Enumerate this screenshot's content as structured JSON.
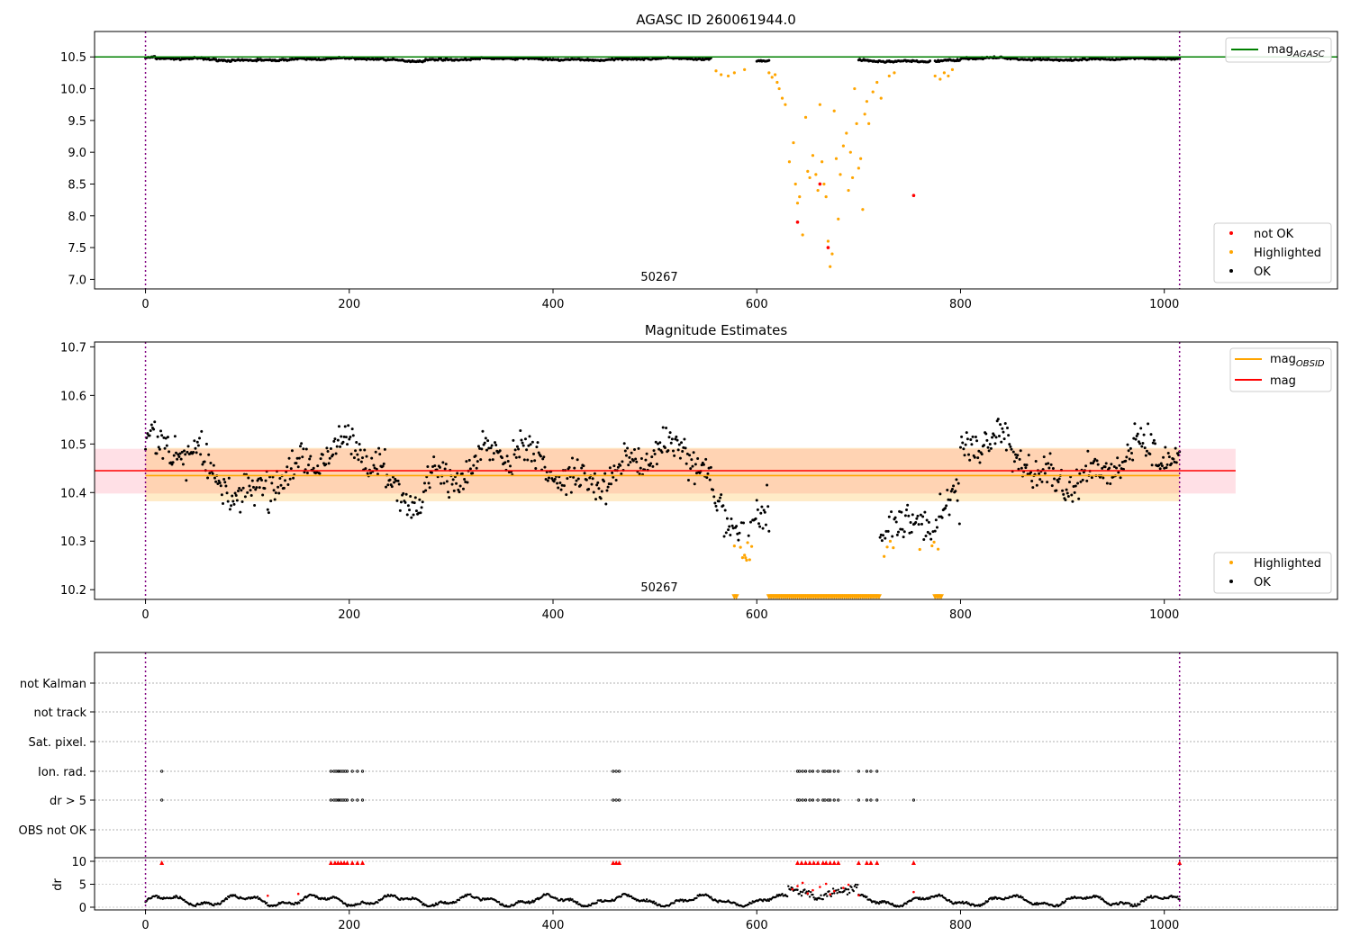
{
  "chart_data": [
    {
      "type": "scatter",
      "title": "AGASC ID 260061944.0",
      "annotation": "50267",
      "xlim": [
        -50,
        1170
      ],
      "ylim": [
        6.85,
        10.9
      ],
      "x_ticks": [
        "0",
        "200",
        "400",
        "600",
        "800",
        "1000"
      ],
      "y_ticks": [
        "7.0",
        "7.5",
        "8.0",
        "8.5",
        "9.0",
        "9.5",
        "10.0",
        "10.5"
      ],
      "vlines": [
        0,
        1015
      ],
      "reference_line": {
        "name": "mag",
        "subscript": "AGASC",
        "y": 10.5,
        "color": "#008000"
      },
      "legend_lines": [
        {
          "name": "mag",
          "subscript": "AGASC",
          "color": "#008000"
        }
      ],
      "legend_points": [
        {
          "name": "not OK",
          "color": "#ff0000"
        },
        {
          "name": "Highlighted",
          "color": "#ffa500"
        },
        {
          "name": "OK",
          "color": "#000000"
        }
      ],
      "series": [
        {
          "name": "OK",
          "color": "#000000",
          "ok_ranges": [
            [
              0,
              555
            ],
            [
              600,
              612
            ],
            [
              700,
              770
            ],
            [
              775,
              1015
            ]
          ]
        },
        {
          "name": "Highlighted",
          "color": "#ffa500",
          "points": [
            [
              560,
              10.28
            ],
            [
              565,
              10.22
            ],
            [
              572,
              10.2
            ],
            [
              578,
              10.25
            ],
            [
              588,
              10.3
            ],
            [
              612,
              10.25
            ],
            [
              615,
              10.18
            ],
            [
              618,
              10.22
            ],
            [
              620,
              10.1
            ],
            [
              622,
              10.0
            ],
            [
              625,
              9.85
            ],
            [
              628,
              9.75
            ],
            [
              632,
              8.85
            ],
            [
              636,
              9.15
            ],
            [
              638,
              8.5
            ],
            [
              640,
              8.2
            ],
            [
              642,
              8.3
            ],
            [
              645,
              7.7
            ],
            [
              648,
              9.55
            ],
            [
              650,
              8.7
            ],
            [
              652,
              8.6
            ],
            [
              655,
              8.95
            ],
            [
              658,
              8.65
            ],
            [
              660,
              8.4
            ],
            [
              662,
              9.75
            ],
            [
              664,
              8.85
            ],
            [
              666,
              8.5
            ],
            [
              668,
              8.3
            ],
            [
              670,
              7.6
            ],
            [
              672,
              7.2
            ],
            [
              674,
              7.4
            ],
            [
              676,
              9.65
            ],
            [
              678,
              8.9
            ],
            [
              680,
              7.95
            ],
            [
              682,
              8.65
            ],
            [
              685,
              9.1
            ],
            [
              688,
              9.3
            ],
            [
              690,
              8.4
            ],
            [
              692,
              9.0
            ],
            [
              694,
              8.6
            ],
            [
              696,
              10.0
            ],
            [
              698,
              9.45
            ],
            [
              700,
              8.75
            ],
            [
              702,
              8.9
            ],
            [
              704,
              8.1
            ],
            [
              706,
              9.6
            ],
            [
              708,
              9.8
            ],
            [
              710,
              9.45
            ],
            [
              714,
              9.95
            ],
            [
              718,
              10.1
            ],
            [
              722,
              9.85
            ],
            [
              730,
              10.2
            ],
            [
              735,
              10.25
            ],
            [
              775,
              10.2
            ],
            [
              780,
              10.15
            ],
            [
              784,
              10.25
            ],
            [
              788,
              10.2
            ],
            [
              792,
              10.3
            ]
          ]
        },
        {
          "name": "not OK",
          "color": "#ff0000",
          "points": [
            [
              640,
              7.9
            ],
            [
              662,
              8.5
            ],
            [
              670,
              7.5
            ],
            [
              754,
              8.32
            ]
          ]
        }
      ]
    },
    {
      "type": "scatter",
      "title": "Magnitude Estimates",
      "annotation": "50267",
      "xlim": [
        -50,
        1170
      ],
      "ylim": [
        10.18,
        10.71
      ],
      "x_ticks": [
        "0",
        "200",
        "400",
        "600",
        "800",
        "1000"
      ],
      "y_ticks": [
        "10.2",
        "10.3",
        "10.4",
        "10.5",
        "10.6",
        "10.7"
      ],
      "vlines": [
        0,
        1015
      ],
      "mag_line": {
        "name": "mag",
        "y": 10.445,
        "band": [
          10.398,
          10.49
        ],
        "x_range": [
          -50,
          1070
        ],
        "color": "#ff0000"
      },
      "obsid_line": {
        "name": "mag",
        "subscript": "OBSID",
        "y": 10.435,
        "band": [
          10.382,
          10.492
        ],
        "x_range": [
          0,
          1015
        ],
        "color": "#ffa500"
      },
      "legend_lines": [
        {
          "name": "mag",
          "subscript": "OBSID",
          "color": "#ffa500"
        },
        {
          "name": "mag",
          "color": "#ff0000"
        }
      ],
      "legend_points": [
        {
          "name": "Highlighted",
          "color": "#ffa500"
        },
        {
          "name": "OK",
          "color": "#000000"
        }
      ],
      "floor_markers": {
        "y": 10.185,
        "ranges": [
          [
            612,
            720
          ],
          [
            578,
            580
          ],
          [
            775,
            782
          ]
        ],
        "color": "#ffa500"
      }
    },
    {
      "type": "scatter",
      "title": "",
      "xlim": [
        -50,
        1170
      ],
      "x_ticks": [
        "0",
        "200",
        "400",
        "600",
        "800",
        "1000"
      ],
      "flag_rows": [
        "not Kalman",
        "not track",
        "Sat. pixel.",
        "Ion. rad.",
        "dr > 5",
        "OBS not OK"
      ],
      "flag_x": [
        16,
        182,
        185,
        187,
        189,
        190,
        192,
        194,
        196,
        198,
        203,
        208,
        213,
        459,
        462,
        465,
        640,
        642,
        645,
        648,
        652,
        655,
        660,
        665,
        667,
        670,
        672,
        676,
        680,
        700,
        708,
        712,
        718
      ],
      "dr_x_extra": [
        754
      ],
      "dr_ylabel": "dr",
      "dr_ticks": [
        "0",
        "5",
        "10"
      ],
      "dr_ylim": [
        -0.5,
        11
      ],
      "dr_high_x": [
        16,
        182,
        186,
        189,
        192,
        195,
        198,
        203,
        208,
        213,
        459,
        462,
        465,
        640,
        644,
        648,
        652,
        656,
        660,
        665,
        668,
        672,
        676,
        680,
        700,
        708,
        712,
        718,
        754,
        1015
      ],
      "dr_red_x": [
        120,
        150,
        635,
        640,
        645,
        650,
        655,
        662,
        668,
        672,
        676,
        685,
        690,
        700,
        754
      ]
    }
  ]
}
